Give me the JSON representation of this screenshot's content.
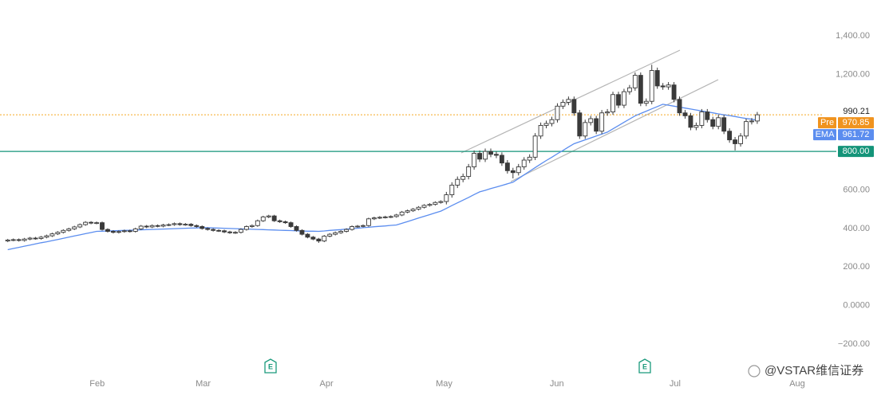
{
  "chart_data": {
    "type": "candlestick",
    "ohlc": [
      [
        335,
        346,
        329,
        340
      ],
      [
        340,
        348,
        334,
        342
      ],
      [
        342,
        348,
        332,
        338
      ],
      [
        338,
        351,
        332,
        345
      ],
      [
        345,
        356,
        339,
        350
      ],
      [
        350,
        356,
        342,
        348
      ],
      [
        348,
        361,
        342,
        355
      ],
      [
        355,
        368,
        349,
        362
      ],
      [
        362,
        378,
        356,
        372
      ],
      [
        372,
        386,
        366,
        380
      ],
      [
        380,
        396,
        374,
        390
      ],
      [
        390,
        404,
        384,
        398
      ],
      [
        398,
        414,
        392,
        408
      ],
      [
        408,
        426,
        402,
        420
      ],
      [
        420,
        438,
        414,
        432
      ],
      [
        432,
        438,
        422,
        428
      ],
      [
        428,
        436,
        422,
        430
      ],
      [
        430,
        436,
        389,
        395
      ],
      [
        395,
        401,
        379,
        385
      ],
      [
        385,
        391,
        374,
        380
      ],
      [
        380,
        390,
        374,
        384
      ],
      [
        384,
        394,
        378,
        388
      ],
      [
        388,
        394,
        379,
        385
      ],
      [
        385,
        404,
        379,
        398
      ],
      [
        398,
        418,
        392,
        412
      ],
      [
        412,
        418,
        402,
        408
      ],
      [
        408,
        421,
        402,
        415
      ],
      [
        415,
        421,
        406,
        412
      ],
      [
        412,
        424,
        406,
        418
      ],
      [
        418,
        426,
        412,
        420
      ],
      [
        420,
        431,
        414,
        425
      ],
      [
        425,
        431,
        414,
        420
      ],
      [
        420,
        428,
        414,
        422
      ],
      [
        422,
        428,
        409,
        415
      ],
      [
        415,
        421,
        404,
        410
      ],
      [
        410,
        416,
        394,
        400
      ],
      [
        400,
        406,
        389,
        395
      ],
      [
        395,
        401,
        384,
        390
      ],
      [
        390,
        396,
        382,
        388
      ],
      [
        388,
        394,
        376,
        382
      ],
      [
        382,
        388,
        372,
        378
      ],
      [
        378,
        386,
        372,
        380
      ],
      [
        380,
        401,
        374,
        395
      ],
      [
        395,
        416,
        389,
        410
      ],
      [
        410,
        421,
        404,
        415
      ],
      [
        415,
        446,
        409,
        440
      ],
      [
        440,
        466,
        434,
        460
      ],
      [
        460,
        471,
        454,
        465
      ],
      [
        465,
        471,
        434,
        440
      ],
      [
        440,
        446,
        429,
        435
      ],
      [
        435,
        441,
        424,
        430
      ],
      [
        430,
        436,
        404,
        410
      ],
      [
        410,
        416,
        384,
        390
      ],
      [
        390,
        396,
        364,
        370
      ],
      [
        370,
        376,
        349,
        355
      ],
      [
        355,
        361,
        339,
        345
      ],
      [
        345,
        351,
        325,
        335
      ],
      [
        335,
        366,
        329,
        360
      ],
      [
        360,
        376,
        354,
        370
      ],
      [
        370,
        384,
        364,
        378
      ],
      [
        378,
        391,
        372,
        385
      ],
      [
        385,
        401,
        379,
        395
      ],
      [
        395,
        416,
        389,
        410
      ],
      [
        410,
        418,
        404,
        412
      ],
      [
        412,
        421,
        406,
        415
      ],
      [
        415,
        456,
        409,
        450
      ],
      [
        450,
        461,
        444,
        455
      ],
      [
        455,
        464,
        449,
        458
      ],
      [
        458,
        466,
        452,
        460
      ],
      [
        460,
        468,
        454,
        462
      ],
      [
        462,
        476,
        456,
        470
      ],
      [
        470,
        491,
        464,
        485
      ],
      [
        485,
        498,
        479,
        492
      ],
      [
        492,
        506,
        486,
        500
      ],
      [
        500,
        516,
        494,
        510
      ],
      [
        510,
        526,
        504,
        520
      ],
      [
        520,
        531,
        514,
        525
      ],
      [
        525,
        541,
        519,
        535
      ],
      [
        535,
        546,
        529,
        540
      ],
      [
        540,
        590,
        525,
        575
      ],
      [
        575,
        640,
        560,
        625
      ],
      [
        625,
        670,
        610,
        655
      ],
      [
        655,
        685,
        640,
        670
      ],
      [
        670,
        735,
        655,
        720
      ],
      [
        720,
        805,
        705,
        790
      ],
      [
        790,
        805,
        745,
        760
      ],
      [
        760,
        815,
        745,
        800
      ],
      [
        800,
        815,
        770,
        785
      ],
      [
        785,
        800,
        765,
        780
      ],
      [
        780,
        795,
        725,
        740
      ],
      [
        740,
        755,
        685,
        700
      ],
      [
        700,
        715,
        660,
        690
      ],
      [
        690,
        735,
        675,
        720
      ],
      [
        720,
        770,
        705,
        755
      ],
      [
        755,
        785,
        740,
        770
      ],
      [
        770,
        895,
        755,
        880
      ],
      [
        880,
        950,
        865,
        935
      ],
      [
        935,
        960,
        920,
        945
      ],
      [
        945,
        980,
        930,
        965
      ],
      [
        965,
        1050,
        950,
        1035
      ],
      [
        1035,
        1070,
        1020,
        1055
      ],
      [
        1055,
        1085,
        1040,
        1070
      ],
      [
        1070,
        1085,
        985,
        1000
      ],
      [
        1000,
        1015,
        865,
        880
      ],
      [
        880,
        965,
        865,
        950
      ],
      [
        950,
        985,
        935,
        970
      ],
      [
        970,
        985,
        890,
        905
      ],
      [
        905,
        1015,
        890,
        1000
      ],
      [
        1000,
        1020,
        985,
        1005
      ],
      [
        1005,
        1110,
        990,
        1095
      ],
      [
        1095,
        1110,
        1025,
        1040
      ],
      [
        1040,
        1125,
        1025,
        1110
      ],
      [
        1110,
        1145,
        1095,
        1130
      ],
      [
        1130,
        1210,
        1115,
        1195
      ],
      [
        1195,
        1210,
        1035,
        1050
      ],
      [
        1050,
        1075,
        1035,
        1060
      ],
      [
        1060,
        1250,
        1045,
        1220
      ],
      [
        1220,
        1235,
        1125,
        1140
      ],
      [
        1140,
        1155,
        1120,
        1135
      ],
      [
        1135,
        1160,
        1120,
        1145
      ],
      [
        1145,
        1160,
        1055,
        1070
      ],
      [
        1070,
        1085,
        985,
        1000
      ],
      [
        1000,
        1015,
        970,
        985
      ],
      [
        985,
        1000,
        910,
        925
      ],
      [
        925,
        950,
        910,
        935
      ],
      [
        935,
        1020,
        920,
        1005
      ],
      [
        1005,
        1020,
        950,
        965
      ],
      [
        965,
        980,
        915,
        930
      ],
      [
        930,
        990,
        915,
        975
      ],
      [
        975,
        990,
        890,
        905
      ],
      [
        905,
        920,
        845,
        860
      ],
      [
        860,
        875,
        805,
        840
      ],
      [
        840,
        895,
        825,
        880
      ],
      [
        880,
        970,
        865,
        955
      ],
      [
        955,
        973,
        940,
        958
      ],
      [
        958,
        1005,
        943,
        990.21
      ]
    ],
    "series": [
      {
        "name": "EMA",
        "color": "#5b8def",
        "values": [
          290,
          296,
          302,
          308,
          314,
          320,
          326,
          331,
          337,
          343,
          349,
          355,
          361,
          367,
          373,
          379,
          385,
          386,
          387,
          388,
          389,
          390,
          391,
          392,
          393,
          394,
          395,
          396,
          397,
          398,
          399,
          400,
          401,
          402,
          403,
          405,
          404,
          403,
          402,
          401,
          400,
          399,
          398,
          397,
          396,
          395,
          394,
          393,
          392,
          391,
          390,
          389,
          388,
          387,
          386,
          386,
          385,
          387,
          390,
          392,
          394,
          397,
          399,
          401,
          404,
          406,
          409,
          411,
          413,
          416,
          418,
          427,
          436,
          445,
          454,
          463,
          472,
          481,
          490,
          504,
          519,
          533,
          547,
          561,
          576,
          590,
          598,
          607,
          615,
          623,
          632,
          640,
          659,
          678,
          697,
          716,
          735,
          753,
          770,
          788,
          805,
          823,
          840,
          850,
          860,
          870,
          880,
          890,
          900,
          917,
          934,
          951,
          968,
          985,
          997,
          1009,
          1021,
          1033,
          1045,
          1040,
          1035,
          1030,
          1025,
          1020,
          1015,
          1010,
          1005,
          1000,
          995,
          990,
          986,
          981,
          976,
          971,
          967,
          961.72
        ]
      }
    ],
    "colors": {
      "up": "#ffffff",
      "down": "#3a3a3a",
      "outline": "#3a3a3a"
    },
    "xlim": [
      -1.4,
      144.5
    ],
    "ylim": [
      -357,
      1586
    ],
    "xticks": [
      {
        "value": 16.1,
        "label": "Feb"
      },
      {
        "value": 35.2,
        "label": "Mar"
      },
      {
        "value": 57.4,
        "label": "Apr"
      },
      {
        "value": 78.6,
        "label": "May"
      },
      {
        "value": 98.9,
        "label": "Jun"
      },
      {
        "value": 120.2,
        "label": "Jul"
      },
      {
        "value": 142.2,
        "label": "Aug"
      }
    ],
    "yticks": [
      {
        "value": -200,
        "label": "−200.00"
      },
      {
        "value": 0,
        "label": "0.0000"
      },
      {
        "value": 200,
        "label": "200.00"
      },
      {
        "value": 400,
        "label": "400.00"
      },
      {
        "value": 600,
        "label": "600.00"
      },
      {
        "value": 1200,
        "label": "1,200.00"
      },
      {
        "value": 1400,
        "label": "1,400.00"
      }
    ],
    "last_price": 990.21,
    "last_price_color": "#f5a623",
    "pre": {
      "name": "Pre",
      "value": 970.85,
      "color": "#f0931e"
    },
    "level": {
      "value": 800,
      "label": "800.00",
      "color": "#149479"
    },
    "event_markers": [
      "E",
      "E"
    ],
    "watermark": "@VSTAR维信证券"
  }
}
